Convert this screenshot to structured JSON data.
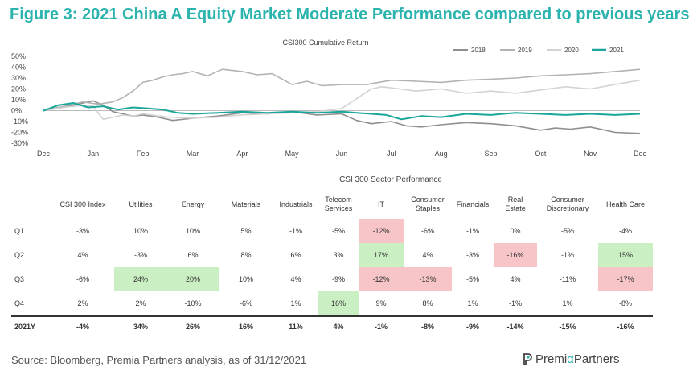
{
  "figure_title": "Figure 3: 2021 China A Equity Market Moderate Performance compared to previous years",
  "colors": {
    "title": "#2bb3ad",
    "s2018": "#8f8f8f",
    "s2019": "#b3b3b3",
    "s2020": "#d3d3d3",
    "s2021": "#1aa69a",
    "positive_highlight": "#c9efc3",
    "negative_highlight": "#f7c5c7"
  },
  "chart_data": {
    "type": "line",
    "title": "CSI300 Cumulative Return",
    "xlabel": "",
    "ylabel": "",
    "x_ticks": [
      "Dec",
      "Jan",
      "Feb",
      "Mar",
      "Apr",
      "May",
      "Jun",
      "Jul",
      "Aug",
      "Sep",
      "Oct",
      "Nov",
      "Dec"
    ],
    "y_ticks": [
      "50%",
      "40%",
      "30%",
      "20%",
      "10%",
      "0%",
      "-10%",
      "-20%",
      "-30%"
    ],
    "ylim": [
      -30,
      50
    ],
    "legend_position": "top-right",
    "series": [
      {
        "name": "2018",
        "color_key": "s2018",
        "x": [
          0,
          0.4,
          0.8,
          1,
          1.2,
          1.4,
          1.6,
          1.8,
          2,
          2.3,
          2.6,
          3,
          3.5,
          4,
          4.5,
          5,
          5.5,
          6,
          6.3,
          6.6,
          7,
          7.3,
          7.6,
          8,
          8.5,
          9,
          9.5,
          10,
          10.3,
          10.6,
          11,
          11.5,
          12
        ],
        "values": [
          0,
          3,
          7,
          9,
          5,
          -1,
          -3,
          -5,
          -4,
          -6,
          -9,
          -7,
          -5,
          -2,
          -3,
          -1,
          -4,
          -3,
          -9,
          -12,
          -10,
          -14,
          -15,
          -13,
          -11,
          -12,
          -14,
          -18,
          -16,
          -17,
          -15,
          -20,
          -21
        ]
      },
      {
        "name": "2019",
        "color_key": "s2019",
        "x": [
          0,
          0.4,
          0.8,
          1.1,
          1.4,
          1.6,
          1.8,
          2,
          2.2,
          2.4,
          2.6,
          2.8,
          3,
          3.3,
          3.6,
          4,
          4.3,
          4.6,
          5,
          5.3,
          5.6,
          6,
          6.5,
          7,
          7.5,
          8,
          8.5,
          9,
          9.5,
          10,
          10.5,
          11,
          11.5,
          12
        ],
        "values": [
          0,
          4,
          8,
          6,
          8,
          12,
          18,
          26,
          28,
          31,
          33,
          34,
          36,
          32,
          38,
          36,
          33,
          34,
          24,
          27,
          23,
          24,
          24,
          28,
          27,
          26,
          28,
          29,
          30,
          32,
          33,
          34,
          36,
          38
        ]
      },
      {
        "name": "2020",
        "color_key": "s2020",
        "x": [
          0,
          0.4,
          0.8,
          1,
          1.2,
          1.4,
          1.6,
          1.8,
          2,
          2.5,
          3,
          3.5,
          4,
          4.5,
          5,
          5.5,
          6,
          6.2,
          6.4,
          6.6,
          6.8,
          7,
          7.5,
          8,
          8.5,
          9,
          9.5,
          10,
          10.5,
          11,
          11.5,
          12
        ],
        "values": [
          0,
          3,
          5,
          4,
          -8,
          -6,
          -4,
          -5,
          -3,
          -6,
          -7,
          -6,
          -4,
          -3,
          -2,
          -1,
          2,
          8,
          14,
          20,
          22,
          21,
          18,
          20,
          16,
          18,
          16,
          19,
          22,
          20,
          24,
          28
        ]
      },
      {
        "name": "2021",
        "color_key": "s2021",
        "x": [
          0,
          0.3,
          0.6,
          0.9,
          1.2,
          1.5,
          1.8,
          2.1,
          2.4,
          2.7,
          3,
          3.5,
          4,
          4.5,
          5,
          5.5,
          6,
          6.3,
          6.6,
          6.9,
          7.2,
          7.6,
          8,
          8.5,
          9,
          9.5,
          10,
          10.5,
          11,
          11.5,
          12
        ],
        "values": [
          0,
          5,
          7,
          3,
          4,
          1,
          3,
          2,
          1,
          -2,
          -3,
          -2,
          -1,
          -2,
          -1,
          -2,
          -1,
          -2,
          -3,
          -4,
          -8,
          -5,
          -6,
          -3,
          -4,
          -2,
          -3,
          -4,
          -3,
          -4,
          -3
        ]
      }
    ]
  },
  "sector_table": {
    "title": "CSI 300 Sector Performance",
    "headers": [
      {
        "top": "",
        "bottom": "CSI 300 Index"
      },
      {
        "top": "",
        "bottom": "Utilities"
      },
      {
        "top": "",
        "bottom": "Energy"
      },
      {
        "top": "",
        "bottom": "Materials"
      },
      {
        "top": "",
        "bottom": "Industrials"
      },
      {
        "top": "Telecom",
        "bottom": "Services"
      },
      {
        "top": "",
        "bottom": "IT"
      },
      {
        "top": "Consumer",
        "bottom": "Staples"
      },
      {
        "top": "",
        "bottom": "Financials"
      },
      {
        "top": "Real",
        "bottom": "Estate"
      },
      {
        "top": "Consumer",
        "bottom": "Discretionary"
      },
      {
        "top": "",
        "bottom": "Health Care"
      }
    ],
    "rows": [
      {
        "label": "Q1",
        "cells": [
          {
            "v": "-3%",
            "h": ""
          },
          {
            "v": "10%",
            "h": ""
          },
          {
            "v": "10%",
            "h": ""
          },
          {
            "v": "5%",
            "h": ""
          },
          {
            "v": "-1%",
            "h": ""
          },
          {
            "v": "-5%",
            "h": ""
          },
          {
            "v": "-12%",
            "h": "neg"
          },
          {
            "v": "-6%",
            "h": ""
          },
          {
            "v": "-1%",
            "h": ""
          },
          {
            "v": "0%",
            "h": ""
          },
          {
            "v": "-5%",
            "h": ""
          },
          {
            "v": "-4%",
            "h": ""
          }
        ]
      },
      {
        "label": "Q2",
        "cells": [
          {
            "v": "4%",
            "h": ""
          },
          {
            "v": "-3%",
            "h": ""
          },
          {
            "v": "6%",
            "h": ""
          },
          {
            "v": "8%",
            "h": ""
          },
          {
            "v": "6%",
            "h": ""
          },
          {
            "v": "3%",
            "h": ""
          },
          {
            "v": "17%",
            "h": "pos"
          },
          {
            "v": "4%",
            "h": ""
          },
          {
            "v": "-3%",
            "h": ""
          },
          {
            "v": "-16%",
            "h": "neg"
          },
          {
            "v": "-1%",
            "h": ""
          },
          {
            "v": "15%",
            "h": "pos"
          }
        ]
      },
      {
        "label": "Q3",
        "cells": [
          {
            "v": "-6%",
            "h": ""
          },
          {
            "v": "24%",
            "h": "pos"
          },
          {
            "v": "20%",
            "h": "pos"
          },
          {
            "v": "10%",
            "h": ""
          },
          {
            "v": "4%",
            "h": ""
          },
          {
            "v": "-9%",
            "h": ""
          },
          {
            "v": "-12%",
            "h": "neg"
          },
          {
            "v": "-13%",
            "h": "neg"
          },
          {
            "v": "-5%",
            "h": ""
          },
          {
            "v": "4%",
            "h": ""
          },
          {
            "v": "-11%",
            "h": ""
          },
          {
            "v": "-17%",
            "h": "neg"
          }
        ]
      },
      {
        "label": "Q4",
        "cells": [
          {
            "v": "2%",
            "h": ""
          },
          {
            "v": "2%",
            "h": ""
          },
          {
            "v": "-10%",
            "h": ""
          },
          {
            "v": "-6%",
            "h": ""
          },
          {
            "v": "1%",
            "h": ""
          },
          {
            "v": "16%",
            "h": "pos"
          },
          {
            "v": "9%",
            "h": ""
          },
          {
            "v": "8%",
            "h": ""
          },
          {
            "v": "1%",
            "h": ""
          },
          {
            "v": "-1%",
            "h": ""
          },
          {
            "v": "1%",
            "h": ""
          },
          {
            "v": "-8%",
            "h": ""
          }
        ]
      }
    ],
    "total": {
      "label": "2021Y",
      "cells": [
        "-4%",
        "34%",
        "26%",
        "16%",
        "11%",
        "4%",
        "-1%",
        "-8%",
        "-9%",
        "-14%",
        "-15%",
        "-16%"
      ]
    }
  },
  "source": "Source: Bloomberg, Premia Partners analysis, as of 31/12/2021",
  "logo": {
    "part1": "Premi",
    "part2": "α",
    "part3": " Partners",
    "icon": "premia-logo-icon"
  }
}
